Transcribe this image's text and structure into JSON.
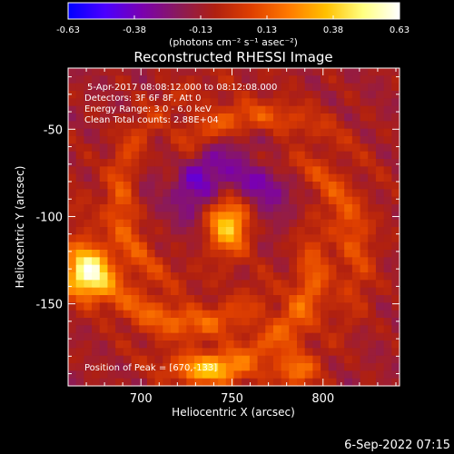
{
  "chart_data": {
    "type": "heatmap",
    "title": "Reconstructed RHESSI Image",
    "xlabel": "Heliocentric X (arcsec)",
    "ylabel": "Heliocentric Y (arcsec)",
    "xlim": [
      660,
      842
    ],
    "ylim": [
      -197,
      -15
    ],
    "xticks": [
      700,
      750,
      800
    ],
    "yticks": [
      -50,
      -100,
      -150
    ],
    "annotations": [
      " 5-Apr-2017 08:08:12.000 to 08:12:08.000",
      "Detectors: 3F 6F 8F, Att 0",
      "Energy Range: 3.0 - 6.0 keV",
      "Clean    Total counts: 2.88E+04"
    ],
    "peak_label": "Position of Peak = [670,-133]",
    "colorbar": {
      "min": -0.63,
      "max": 0.63,
      "ticks": [
        "-0.63",
        "-0.38",
        "-0.13",
        "0.13",
        "0.38",
        "0.63"
      ],
      "unit_label": "(photons cm⁻² s⁻¹ asec⁻²)",
      "colors": [
        "#0000ff",
        "#4b00ff",
        "#7a00b0",
        "#8a1a5a",
        "#b02010",
        "#e04000",
        "#ff7a00",
        "#ffc000",
        "#ffff80",
        "#ffffff"
      ]
    },
    "sources": [
      {
        "x": 748,
        "y": -102,
        "sx": 9,
        "sy": 13,
        "amp": 0.63
      },
      {
        "x": 670,
        "y": -133,
        "sx": 9,
        "sy": 10,
        "amp": 0.63
      },
      {
        "x": 738,
        "y": -188,
        "sx": 14,
        "sy": 6,
        "amp": 0.38
      },
      {
        "x": 785,
        "y": -188,
        "sx": 8,
        "sy": 7,
        "amp": 0.3
      }
    ],
    "ring": {
      "cx": 748,
      "cy": -108,
      "radius": 60,
      "width": 16,
      "amp": 0.25
    },
    "negative_region": {
      "x": 745,
      "y": -80,
      "sx": 30,
      "sy": 18,
      "amp": -0.32
    },
    "date_stamp": "6-Sep-2022 07:15"
  }
}
